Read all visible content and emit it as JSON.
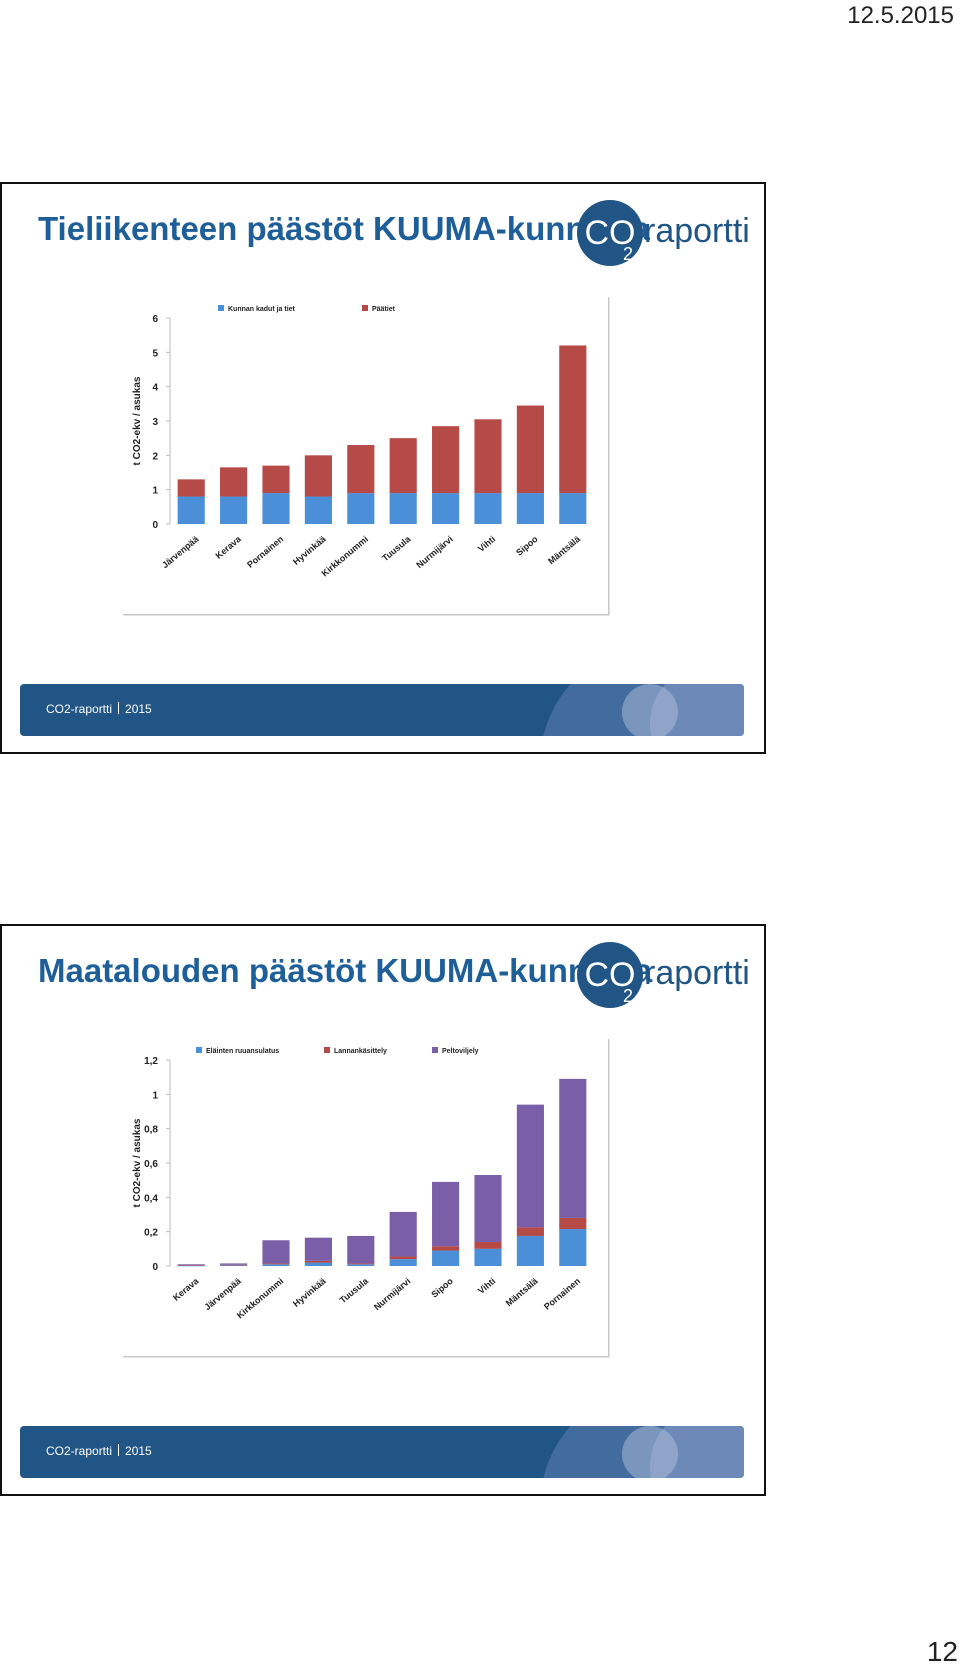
{
  "page": {
    "date": "12.5.2015",
    "number": "12"
  },
  "logo": {
    "co": "CO",
    "sub": "2",
    "word": "raportti"
  },
  "footer": {
    "brand": "CO2-raportti",
    "year": "2015"
  },
  "colors": {
    "title": "#1f5f99",
    "footer": "#215586",
    "blue": "#4a8fd8",
    "red": "#b54a46",
    "purple": "#7b5ea8"
  },
  "slides": [
    {
      "title": "Tieliikenteen päästöt KUUMA-kunnissa"
    },
    {
      "title": "Maatalouden päästöt KUUMA-kunnissa"
    }
  ],
  "chart_data": [
    {
      "type": "bar",
      "stacked": true,
      "ylabel": "t CO2-ekv / asukas",
      "ylim": [
        0,
        6
      ],
      "yticks": [
        "0",
        "1",
        "2",
        "3",
        "4",
        "5",
        "6"
      ],
      "categories": [
        "Järvenpää",
        "Kerava",
        "Pornainen",
        "Hyvinkää",
        "Kirkkonummi",
        "Tuusula",
        "Nurmijärvi",
        "Vihti",
        "Sipoo",
        "Mäntsälä"
      ],
      "series": [
        {
          "name": "Kunnan kadut ja tiet",
          "color": "#4a8fd8",
          "values": [
            0.8,
            0.8,
            0.9,
            0.8,
            0.9,
            0.9,
            0.9,
            0.9,
            0.9,
            0.9
          ]
        },
        {
          "name": "Päätiet",
          "color": "#b54a46",
          "values": [
            0.5,
            0.85,
            0.8,
            1.2,
            1.4,
            1.6,
            1.95,
            2.15,
            2.55,
            4.3
          ]
        }
      ],
      "legend": "top"
    },
    {
      "type": "bar",
      "stacked": true,
      "ylabel": "t CO2-ekv / asukas",
      "ylim": [
        0,
        1.2
      ],
      "yticks": [
        "0",
        "0,2",
        "0,4",
        "0,6",
        "0,8",
        "1",
        "1,2"
      ],
      "categories": [
        "Kerava",
        "Järvenpää",
        "Kirkkonummi",
        "Hyvinkää",
        "Tuusula",
        "Nurmijärvi",
        "Sipoo",
        "Vihti",
        "Mäntsälä",
        "Pornainen"
      ],
      "series": [
        {
          "name": "Eläinten ruuansulatus",
          "color": "#4a8fd8",
          "values": [
            0.002,
            0.004,
            0.01,
            0.02,
            0.01,
            0.04,
            0.09,
            0.1,
            0.175,
            0.215
          ]
        },
        {
          "name": "Lannankäsittely",
          "color": "#b54a46",
          "values": [
            0.002,
            0.003,
            0.005,
            0.01,
            0.005,
            0.015,
            0.025,
            0.04,
            0.05,
            0.065
          ]
        },
        {
          "name": "Peltoviljely",
          "color": "#7b5ea8",
          "values": [
            0.006,
            0.008,
            0.135,
            0.135,
            0.16,
            0.26,
            0.375,
            0.39,
            0.715,
            0.81
          ]
        }
      ],
      "legend": "top"
    }
  ]
}
